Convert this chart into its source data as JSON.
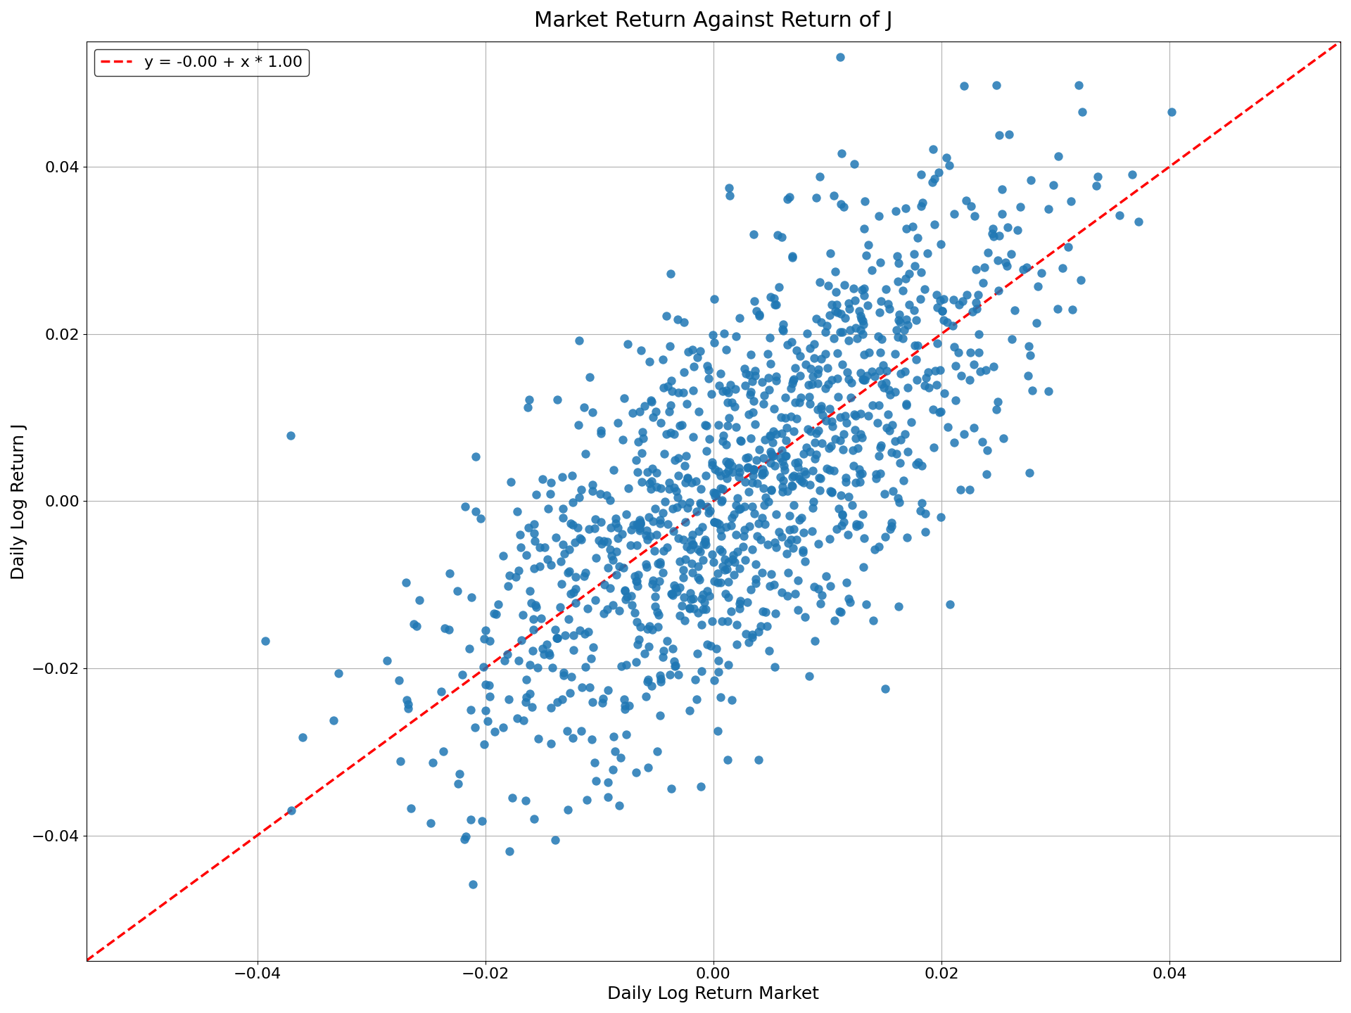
{
  "title": "Market Return Against Return of J",
  "xlabel": "Daily Log Return Market",
  "ylabel": "Daily Log Return J",
  "legend_label": "y = -0.00 + x * 1.00",
  "intercept": 0.0,
  "slope": 1.0,
  "n_points": 1200,
  "seed": 7,
  "market_mean": 0.003,
  "market_std": 0.013,
  "noise_std": 0.012,
  "scatter_color": "#1f77b4",
  "scatter_size": 80,
  "scatter_alpha": 0.85,
  "line_color": "red",
  "line_style": "--",
  "line_width": 2.5,
  "xlim": [
    -0.055,
    0.055
  ],
  "ylim": [
    -0.055,
    0.055
  ],
  "xticks": [
    -0.04,
    -0.02,
    0.0,
    0.02,
    0.04
  ],
  "yticks": [
    -0.04,
    -0.02,
    0.0,
    0.02,
    0.04
  ],
  "title_fontsize": 22,
  "label_fontsize": 18,
  "tick_fontsize": 16,
  "legend_fontsize": 16,
  "grid_color": "#b0b0b0",
  "grid_linewidth": 0.8,
  "figure_width": 19.2,
  "figure_height": 14.4,
  "dpi": 100
}
